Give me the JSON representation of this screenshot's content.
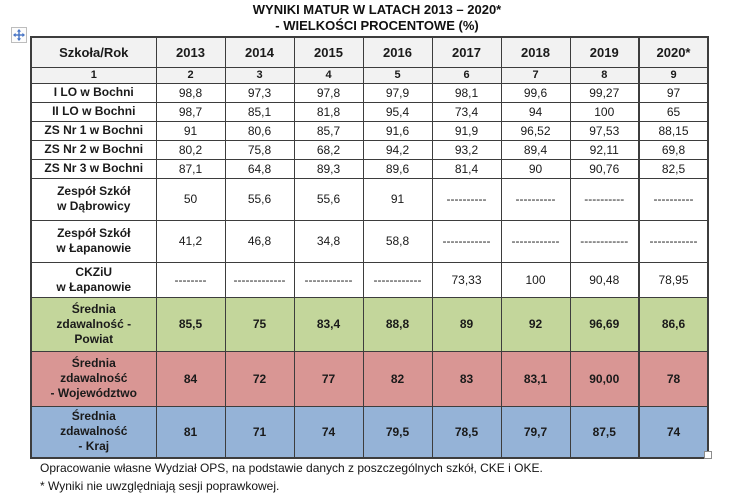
{
  "title": {
    "line1": "WYNIKI MATUR W LATACH 2013 – 2020*",
    "line2": "- WIELKOŚCI PROCENTOWE (%)"
  },
  "table": {
    "header_row": [
      "Szkoła/Rok",
      "2013",
      "2014",
      "2015",
      "2016",
      "2017",
      "2018",
      "2019",
      "2020*"
    ],
    "number_row": [
      "1",
      "2",
      "3",
      "4",
      "5",
      "6",
      "7",
      "8",
      "9"
    ],
    "rows": [
      {
        "type": "school",
        "name": "I LO w Bochni",
        "values": [
          "98,8",
          "97,3",
          "97,8",
          "97,9",
          "98,1",
          "99,6",
          "99,27",
          "97"
        ]
      },
      {
        "type": "school",
        "name": "II LO w Bochni",
        "values": [
          "98,7",
          "85,1",
          "81,8",
          "95,4",
          "73,4",
          "94",
          "100",
          "65"
        ]
      },
      {
        "type": "school",
        "name": "ZS Nr 1 w Bochni",
        "values": [
          "91",
          "80,6",
          "85,7",
          "91,6",
          "91,9",
          "96,52",
          "97,53",
          "88,15"
        ]
      },
      {
        "type": "school",
        "name": "ZS Nr 2 w Bochni",
        "values": [
          "80,2",
          "75,8",
          "68,2",
          "94,2",
          "93,2",
          "89,4",
          "92,11",
          "69,8"
        ]
      },
      {
        "type": "school",
        "name": "ZS Nr 3 w Bochni",
        "values": [
          "87,1",
          "64,8",
          "89,3",
          "89,6",
          "81,4",
          "90",
          "90,76",
          "82,5"
        ]
      },
      {
        "type": "school-two-line",
        "name": "Zespół Szkół\nw Dąbrowicy",
        "values": [
          "50",
          "55,6",
          "55,6",
          "91",
          "----------",
          "----------",
          "----------",
          "----------"
        ]
      },
      {
        "type": "school-two-line",
        "name": "Zespół Szkół\nw Łapanowie",
        "values": [
          "41,2",
          "46,8",
          "34,8",
          "58,8",
          "------------",
          "------------",
          "------------",
          "------------"
        ]
      },
      {
        "type": "ckziu",
        "name": "CKZiU\nw Łapanowie",
        "values": [
          "--------",
          "-------------",
          "------------",
          "------------",
          "73,33",
          "100",
          "90,48",
          "78,95"
        ]
      },
      {
        "type": "summary-powiat",
        "name": "Średnia\nzdawalność -\nPowiat",
        "values": [
          "85,5",
          "75",
          "83,4",
          "88,8",
          "89",
          "92",
          "96,69",
          "86,6"
        ]
      },
      {
        "type": "summary-wojewodztwo",
        "name": "Średnia\nzdawalność\n- Województwo",
        "values": [
          "84",
          "72",
          "77",
          "82",
          "83",
          "83,1",
          "90,00",
          "78"
        ]
      },
      {
        "type": "summary-kraj",
        "name": "Średnia\nzdawalność\n- Kraj",
        "values": [
          "81",
          "71",
          "74",
          "79,5",
          "78,5",
          "79,7",
          "87,5",
          "74"
        ]
      }
    ]
  },
  "footer": {
    "source": "Opracowanie własne Wydział OPS, na podstawie danych z poszczególnych szkół, CKE i OKE.",
    "note": "* Wyniki nie uwzględniają sesji poprawkowej."
  },
  "icons": {
    "move_handle": "table-move-handle-icon",
    "resize_handle": "table-resize-handle"
  },
  "colors": {
    "summary_powiat_bg": "#C3D69B",
    "summary_wojewodztwo_bg": "#D99694",
    "summary_kraj_bg": "#95B3D7",
    "header_bg": "#F2F2F2",
    "border": "#3D3D3D",
    "move_handle_blue": "#4472C4"
  }
}
